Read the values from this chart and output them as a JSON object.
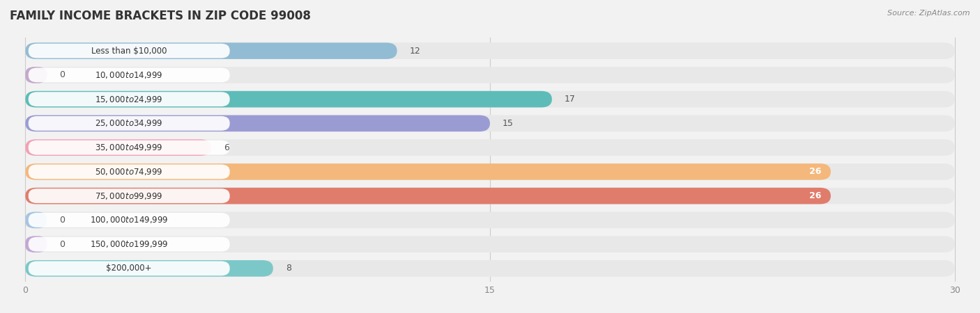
{
  "title": "FAMILY INCOME BRACKETS IN ZIP CODE 99008",
  "source": "Source: ZipAtlas.com",
  "categories": [
    "Less than $10,000",
    "$10,000 to $14,999",
    "$15,000 to $24,999",
    "$25,000 to $34,999",
    "$35,000 to $49,999",
    "$50,000 to $74,999",
    "$75,000 to $99,999",
    "$100,000 to $149,999",
    "$150,000 to $199,999",
    "$200,000+"
  ],
  "values": [
    12,
    0,
    17,
    15,
    6,
    26,
    26,
    0,
    0,
    8
  ],
  "bar_colors": [
    "#92bcd4",
    "#c3a8cc",
    "#5dbcb8",
    "#9b9bd4",
    "#f4a0b4",
    "#f4b87c",
    "#e07c6c",
    "#a8c4e0",
    "#c0a8d4",
    "#7cc8c8"
  ],
  "data_max": 30,
  "xticks": [
    0,
    15,
    30
  ],
  "background_color": "#f2f2f2",
  "bar_bg_color": "#e8e8e8",
  "label_box_color": "#ffffff",
  "title_fontsize": 12,
  "label_fontsize": 8.5,
  "value_fontsize": 9,
  "source_fontsize": 8
}
